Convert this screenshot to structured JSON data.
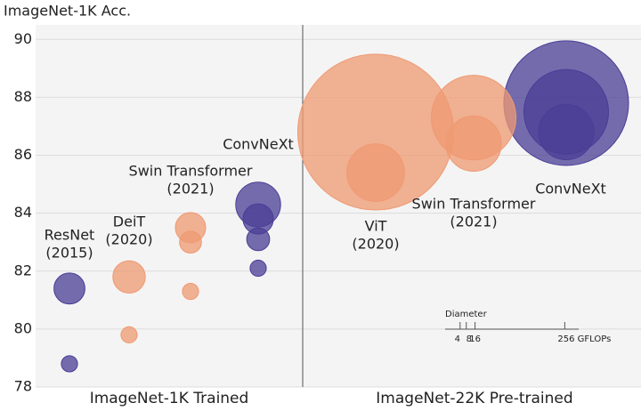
{
  "chart_data": {
    "type": "bubble",
    "ylabel": "ImageNet-1K Acc.",
    "ylim": [
      78,
      90.5
    ],
    "yticks": [
      78,
      80,
      82,
      84,
      86,
      88,
      90
    ],
    "grid": true,
    "groups": [
      "ImageNet-1K Trained",
      "ImageNet-22K Pre-trained"
    ],
    "series": [
      {
        "name": "ResNet",
        "note": "(2015)",
        "group": 0,
        "color": "#4a3d96",
        "values": [
          78.8,
          81.4
        ],
        "sizes": [
          3,
          11
        ]
      },
      {
        "name": "DeiT",
        "note": "(2020)",
        "group": 0,
        "color": "#ef9a72",
        "values": [
          79.8,
          81.8
        ],
        "sizes": [
          3,
          12
        ]
      },
      {
        "name": "Swin Transformer",
        "note": "(2021)",
        "group": 0,
        "color": "#ef9a72",
        "values": [
          81.3,
          83.0,
          83.5
        ],
        "sizes": [
          3,
          5.5,
          10.5
        ]
      },
      {
        "name": "ConvNeXt",
        "group": 0,
        "color": "#4a3d96",
        "values": [
          82.1,
          83.1,
          83.8,
          84.3
        ],
        "sizes": [
          3,
          6,
          10.5,
          23
        ]
      },
      {
        "name": "ViT",
        "note": "(2020)",
        "group": 1,
        "color": "#ef9a72",
        "values": [
          85.4,
          86.8
        ],
        "sizes": [
          38,
          278
        ]
      },
      {
        "name": "Swin Transformer",
        "note": "(2021)",
        "group": 1,
        "color": "#ef9a72",
        "values": [
          86.4,
          87.3
        ],
        "sizes": [
          35,
          82
        ]
      },
      {
        "name": "ConvNeXt",
        "group": 1,
        "color": "#4a3d96",
        "values": [
          86.8,
          87.5,
          87.8
        ],
        "sizes": [
          35,
          82,
          178
        ]
      }
    ],
    "size_legend": {
      "title": "Diameter",
      "ticks": [
        4,
        8,
        16,
        {
          "value": 256,
          "label": "256 GFLOPs"
        }
      ]
    }
  }
}
